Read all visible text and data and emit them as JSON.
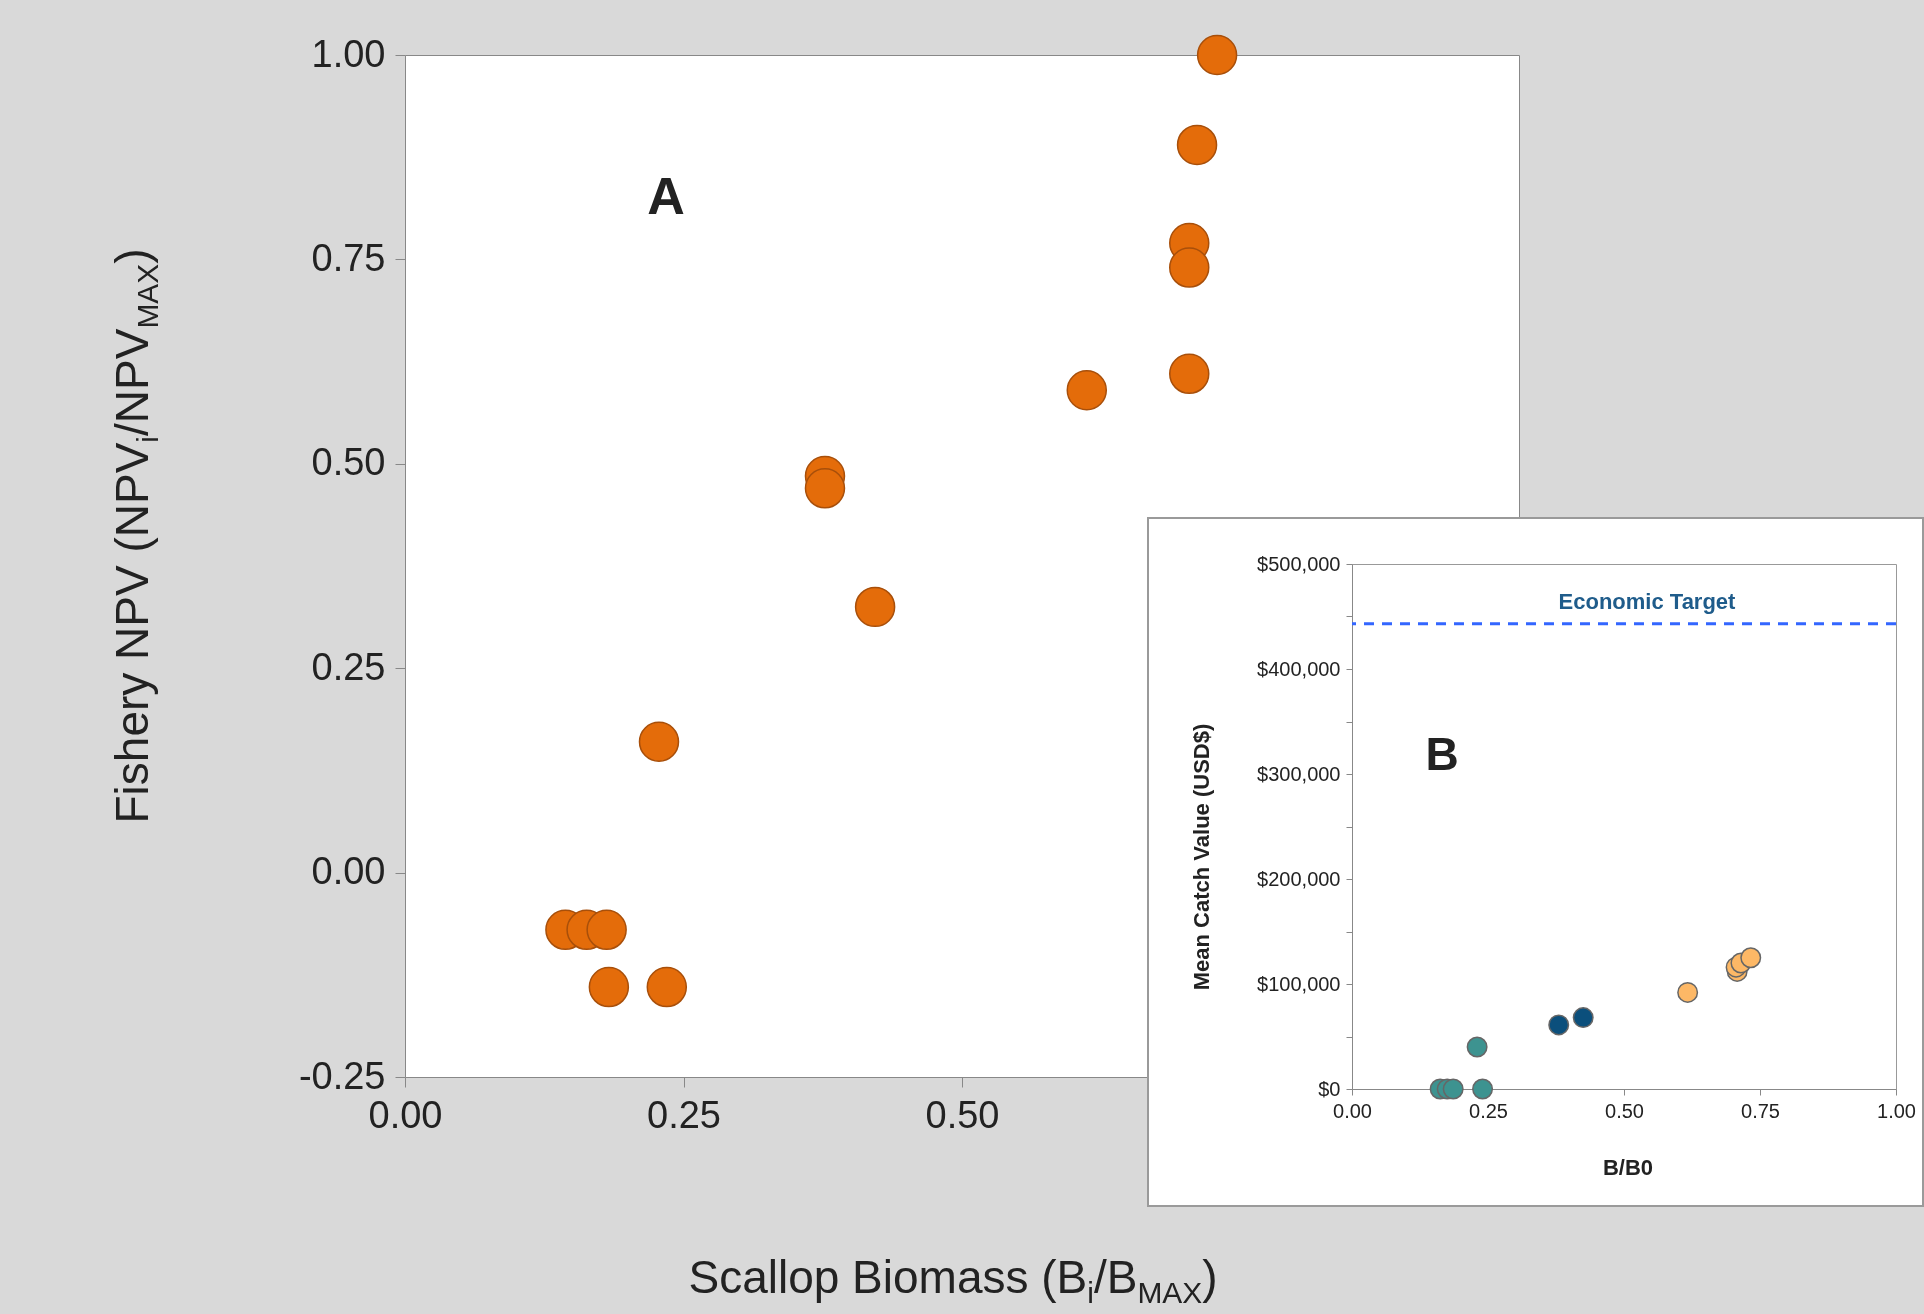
{
  "chart_data": [
    {
      "type": "scatter",
      "annotations": [
        "A"
      ],
      "xlabel": "Scallop Biomass (B$_{i}$/B$_{MAX}$)",
      "ylabel": "Fishery NPV (NPV$_{i}$/NPV$_{MAX}$)",
      "xlim": [
        0,
        1
      ],
      "ylim": [
        -0.25,
        1
      ],
      "xticks": [
        {
          "value": 0,
          "label": "0.00"
        },
        {
          "value": 0.25,
          "label": "0.25"
        },
        {
          "value": 0.5,
          "label": "0.50"
        }
      ],
      "yticks": [
        {
          "value": -0.25,
          "label": "-0.25"
        },
        {
          "value": 0,
          "label": "0.00"
        },
        {
          "value": 0.25,
          "label": "0.25"
        },
        {
          "value": 0.5,
          "label": "0.50"
        },
        {
          "value": 0.75,
          "label": "0.75"
        },
        {
          "value": 1,
          "label": "1.00"
        }
      ],
      "x": [
        0.729,
        0.711,
        0.704,
        0.704,
        0.704,
        0.612,
        0.377,
        0.377,
        0.422,
        0.228,
        0.144,
        0.163,
        0.181,
        0.183,
        0.235
      ],
      "values": [
        1.0,
        0.89,
        0.77,
        0.74,
        0.61,
        0.59,
        0.485,
        0.47,
        0.325,
        0.16,
        -0.07,
        -0.07,
        -0.07,
        -0.14,
        -0.14
      ],
      "color": "#e46c0a",
      "marker": "circle",
      "grid": false
    },
    {
      "type": "scatter",
      "annotations": [
        "B"
      ],
      "xlabel": "B/B0",
      "ylabel": "Mean Catch Value (USD$)",
      "xlim": [
        0,
        1
      ],
      "ylim": [
        0,
        500000
      ],
      "xticks": [
        {
          "value": 0,
          "label": "0.00"
        },
        {
          "value": 0.25,
          "label": "0.25"
        },
        {
          "value": 0.5,
          "label": "0.50"
        },
        {
          "value": 0.75,
          "label": "0.75"
        },
        {
          "value": 1,
          "label": "1.00"
        }
      ],
      "yticks": [
        {
          "value": 0,
          "label": "$0"
        },
        {
          "value": 50000,
          "label": null
        },
        {
          "value": 100000,
          "label": "$100,000"
        },
        {
          "value": 150000,
          "label": null
        },
        {
          "value": 200000,
          "label": "$200,000"
        },
        {
          "value": 250000,
          "label": null
        },
        {
          "value": 300000,
          "label": "$300,000"
        },
        {
          "value": 350000,
          "label": null
        },
        {
          "value": 400000,
          "label": "$400,000"
        },
        {
          "value": 450000,
          "label": null
        },
        {
          "value": 500000,
          "label": "$500,000"
        }
      ],
      "series": [
        {
          "color": "#3d9390",
          "x": [
            0.162,
            0.175,
            0.186,
            0.24,
            0.23
          ],
          "values": [
            0,
            0,
            0,
            0,
            40000
          ]
        },
        {
          "color": "#0b4f7c",
          "x": [
            0.38,
            0.425
          ],
          "values": [
            61000,
            68000
          ]
        },
        {
          "color": "#fdb866",
          "x": [
            0.617,
            0.708,
            0.706,
            0.715,
            0.733
          ],
          "values": [
            92000,
            112000,
            116000,
            120000,
            125000
          ]
        }
      ],
      "ref_lines": [
        {
          "axis": "y",
          "value": 443000,
          "label": "Economic Target",
          "color": "#3366ff",
          "line_style": "dashed"
        }
      ],
      "marker": "circle",
      "grid": false
    }
  ]
}
